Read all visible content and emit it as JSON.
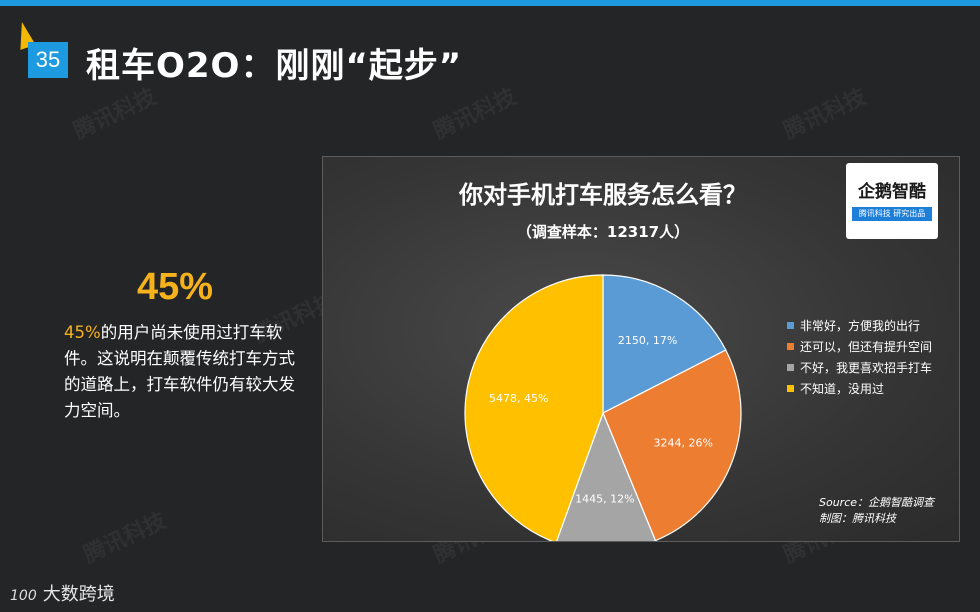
{
  "page": {
    "number": "35",
    "title": "租车O2O：刚刚“起步”",
    "footer_brand_mark": "100",
    "footer_brand_text": "大数跨境",
    "watermark": "腾讯科技"
  },
  "left_panel": {
    "big_stat": "45%",
    "desc_highlight": "45%",
    "desc_text": "的用户尚未使用过打车软件。这说明在颠覆传统打车方式的道路上，打车软件仍有较大发力空间。"
  },
  "chart_panel": {
    "logo_main": "企鹅智酷",
    "logo_sub": "腾讯科技  研究出品",
    "source_line1": "Source：企鹅智酷调查",
    "source_line2": "制图：腾讯科技"
  },
  "chart_data": {
    "type": "pie",
    "title": "你对手机打车服务怎么看？",
    "subtitle": "（调查样本：12317人）",
    "categories": [
      "非常好，方便我的出行",
      "还可以，但还有提升空间",
      "不好，我更喜欢招手打车",
      "不知道，没用过"
    ],
    "values": [
      2150,
      3244,
      1445,
      5478
    ],
    "percents": [
      17,
      26,
      12,
      45
    ],
    "data_labels": [
      "2150, 17%",
      "3244, 26%",
      "1445, 12%",
      "5478, 45%"
    ],
    "colors": [
      "#5b9bd5",
      "#ed7d31",
      "#a5a5a5",
      "#ffc000"
    ],
    "legend_position": "right",
    "start_angle_deg": 0,
    "direction": "clockwise"
  }
}
